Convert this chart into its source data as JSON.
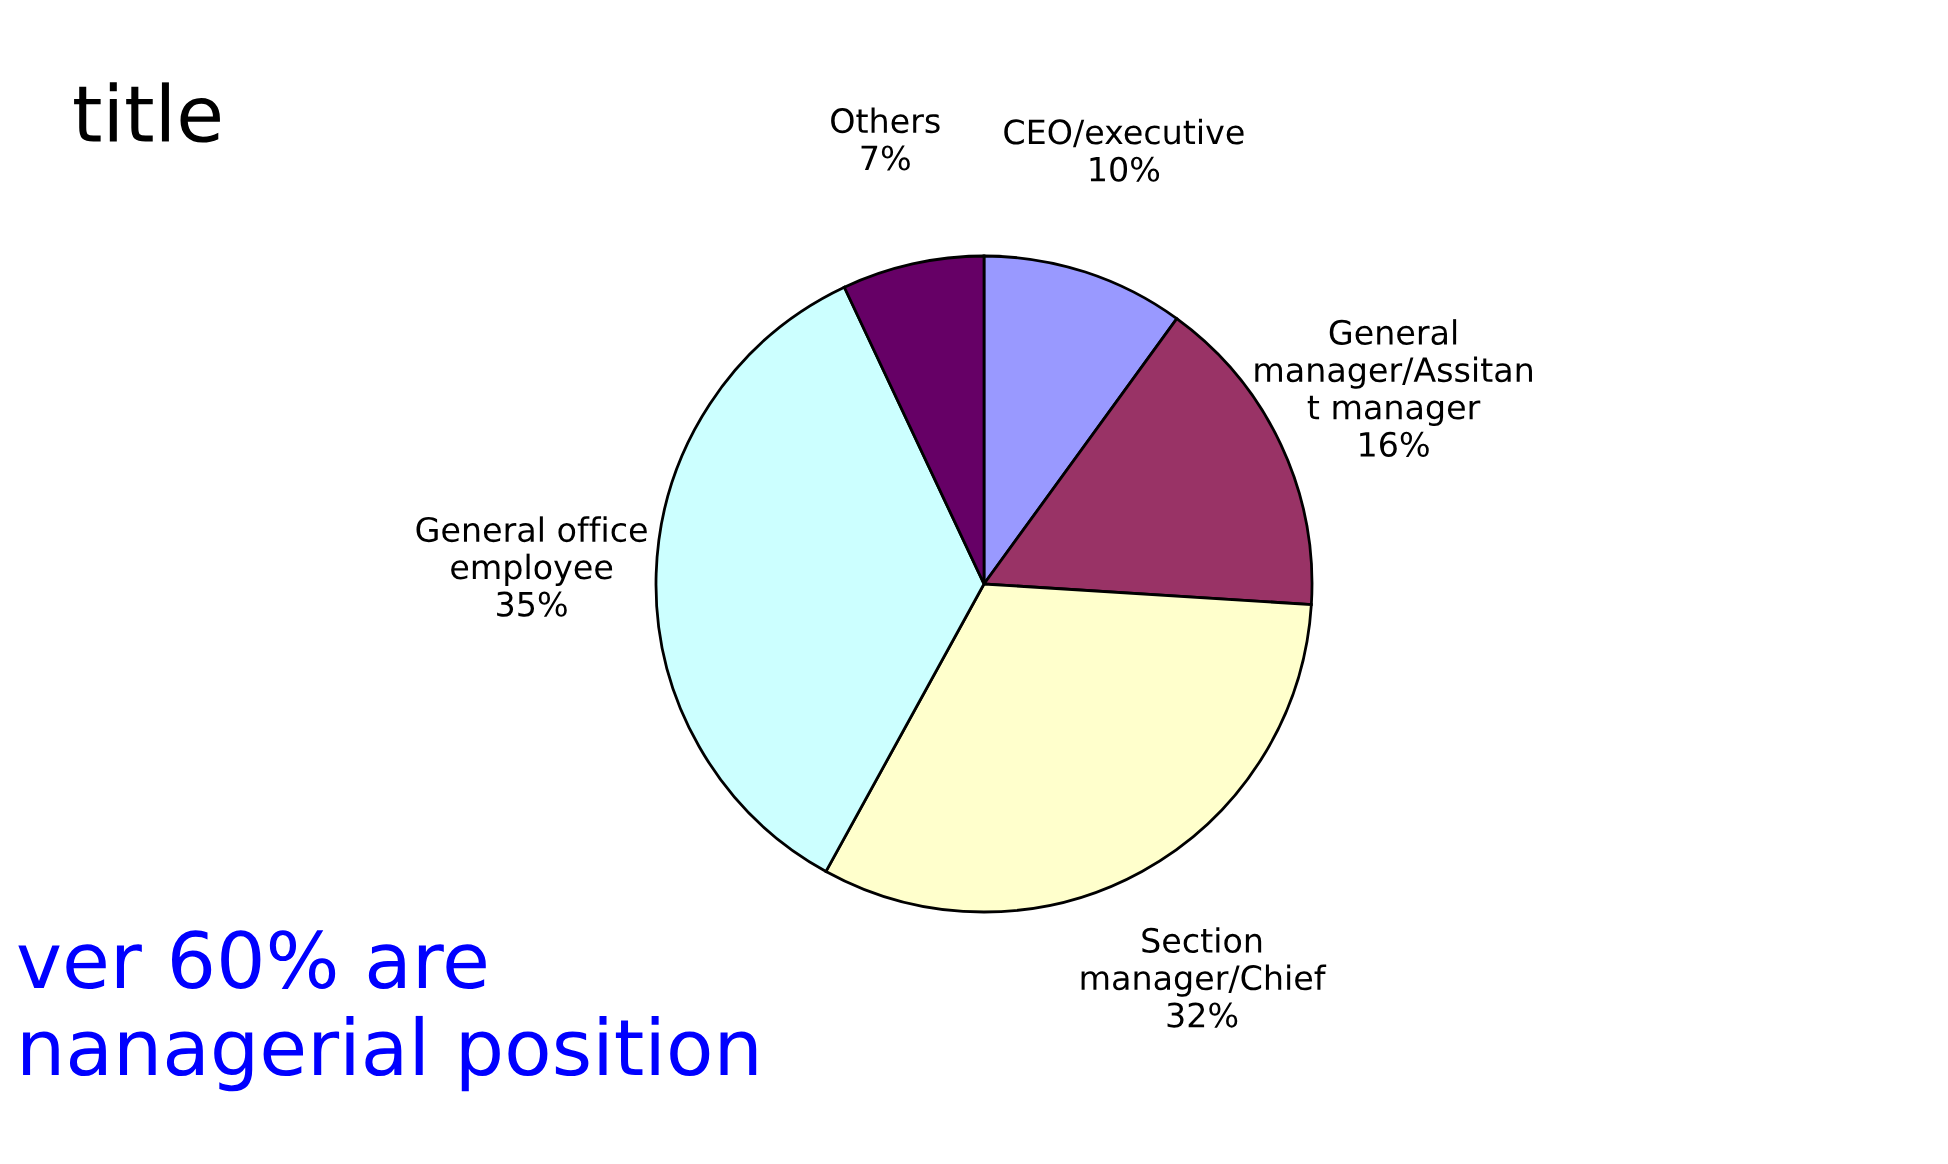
{
  "chart_data": {
    "type": "pie",
    "title": "title",
    "categories": [
      "CEO/executive",
      "General\nmanager/Assitan\nt manager",
      "Section\nmanager/Chief",
      "General office\nemployee",
      "Others"
    ],
    "values": [
      10,
      16,
      32,
      35,
      7
    ],
    "value_labels": [
      "10%",
      "16%",
      "32%",
      "35%",
      "7%"
    ],
    "colors": [
      "#9999ff",
      "#993366",
      "#ffffcc",
      "#ccffff",
      "#660066"
    ],
    "annotations": [
      "ver 60% are\nnanagerial position"
    ]
  }
}
